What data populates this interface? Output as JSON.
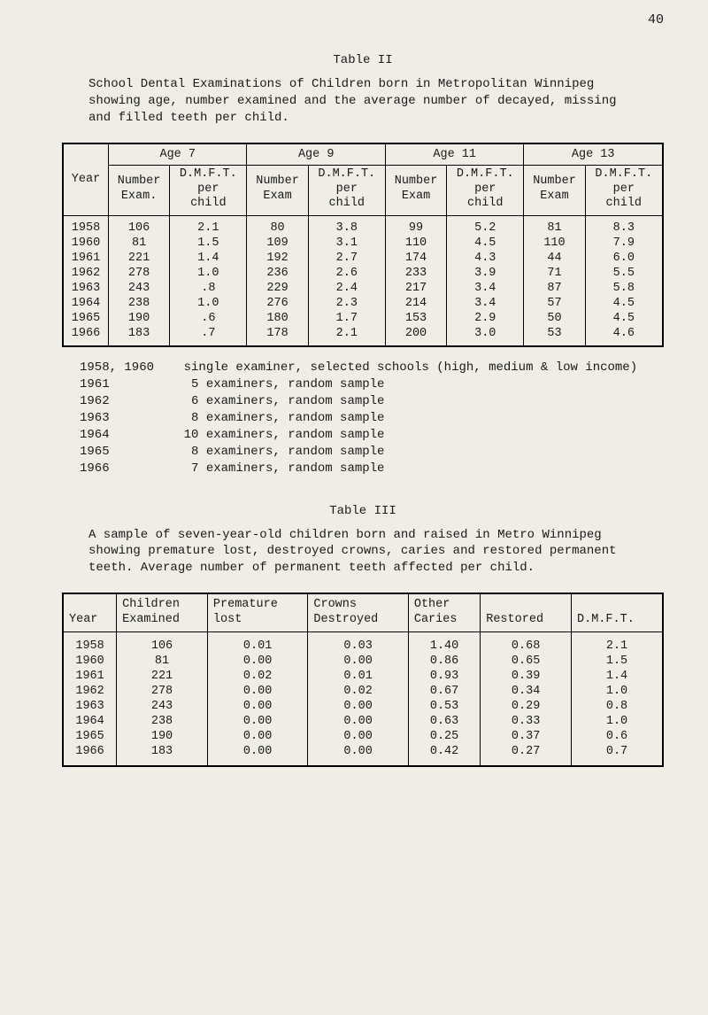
{
  "page_number": "40",
  "table2": {
    "title": "Table II",
    "intro": "School Dental Examinations of Children born in Metropolitan Winnipeg showing age, number examined and the average number of decayed, missing and filled teeth per child.",
    "year_label": "Year",
    "age_groups": [
      "Age  7",
      "Age  9",
      "Age  11",
      "Age  13"
    ],
    "sub_headers": {
      "num": "Number",
      "exam_dot": "Exam.",
      "exam": "Exam",
      "dmft": "D.M.F.T.",
      "per": "per",
      "child": "child"
    },
    "rows": [
      {
        "year": "1958",
        "n7": "106",
        "d7": "2.1",
        "n9": "80",
        "d9": "3.8",
        "n11": "99",
        "d11": "5.2",
        "n13": "81",
        "d13": "8.3"
      },
      {
        "year": "1960",
        "n7": "81",
        "d7": "1.5",
        "n9": "109",
        "d9": "3.1",
        "n11": "110",
        "d11": "4.5",
        "n13": "110",
        "d13": "7.9"
      },
      {
        "year": "1961",
        "n7": "221",
        "d7": "1.4",
        "n9": "192",
        "d9": "2.7",
        "n11": "174",
        "d11": "4.3",
        "n13": "44",
        "d13": "6.0"
      },
      {
        "year": "1962",
        "n7": "278",
        "d7": "1.0",
        "n9": "236",
        "d9": "2.6",
        "n11": "233",
        "d11": "3.9",
        "n13": "71",
        "d13": "5.5"
      },
      {
        "year": "1963",
        "n7": "243",
        "d7": ".8",
        "n9": "229",
        "d9": "2.4",
        "n11": "217",
        "d11": "3.4",
        "n13": "87",
        "d13": "5.8"
      },
      {
        "year": "1964",
        "n7": "238",
        "d7": "1.0",
        "n9": "276",
        "d9": "2.3",
        "n11": "214",
        "d11": "3.4",
        "n13": "57",
        "d13": "4.5"
      },
      {
        "year": "1965",
        "n7": "190",
        "d7": ".6",
        "n9": "180",
        "d9": "1.7",
        "n11": "153",
        "d11": "2.9",
        "n13": "50",
        "d13": "4.5"
      },
      {
        "year": "1966",
        "n7": "183",
        "d7": ".7",
        "n9": "178",
        "d9": "2.1",
        "n11": "200",
        "d11": "3.0",
        "n13": "53",
        "d13": "4.6"
      }
    ],
    "notes": [
      "1958, 1960    single examiner, selected schools (high, medium & low income)",
      "1961           5 examiners, random sample",
      "1962           6 examiners, random sample",
      "1963           8 examiners, random sample",
      "1964          10 examiners, random sample",
      "1965           8 examiners, random sample",
      "1966           7 examiners, random sample"
    ]
  },
  "table3": {
    "title": "Table III",
    "intro": "A sample of seven-year-old children born and raised in Metro Winnipeg showing premature lost, destroyed crowns, caries and restored permanent teeth.  Average number of permanent teeth affected per child.",
    "headers": {
      "year": "Year",
      "children_l1": "Children",
      "children_l2": "Examined",
      "premature_l1": "Premature",
      "premature_l2": "lost",
      "crowns_l1": "Crowns",
      "crowns_l2": "Destroyed",
      "other_l1": "Other",
      "other_l2": "Caries",
      "restored": "Restored",
      "dmft": "D.M.F.T."
    },
    "rows": [
      {
        "year": "1958",
        "ch": "106",
        "pre": "0.01",
        "cr": "0.03",
        "oth": "1.40",
        "res": "0.68",
        "dm": "2.1"
      },
      {
        "year": "1960",
        "ch": "81",
        "pre": "0.00",
        "cr": "0.00",
        "oth": "0.86",
        "res": "0.65",
        "dm": "1.5"
      },
      {
        "year": "1961",
        "ch": "221",
        "pre": "0.02",
        "cr": "0.01",
        "oth": "0.93",
        "res": "0.39",
        "dm": "1.4"
      },
      {
        "year": "1962",
        "ch": "278",
        "pre": "0.00",
        "cr": "0.02",
        "oth": "0.67",
        "res": "0.34",
        "dm": "1.0"
      },
      {
        "year": "1963",
        "ch": "243",
        "pre": "0.00",
        "cr": "0.00",
        "oth": "0.53",
        "res": "0.29",
        "dm": "0.8"
      },
      {
        "year": "1964",
        "ch": "238",
        "pre": "0.00",
        "cr": "0.00",
        "oth": "0.63",
        "res": "0.33",
        "dm": "1.0"
      },
      {
        "year": "1965",
        "ch": "190",
        "pre": "0.00",
        "cr": "0.00",
        "oth": "0.25",
        "res": "0.37",
        "dm": "0.6"
      },
      {
        "year": "1966",
        "ch": "183",
        "pre": "0.00",
        "cr": "0.00",
        "oth": "0.42",
        "res": "0.27",
        "dm": "0.7"
      }
    ]
  },
  "colors": {
    "background": "#f0ede6",
    "text": "#1a1a1a",
    "border": "#000000"
  }
}
